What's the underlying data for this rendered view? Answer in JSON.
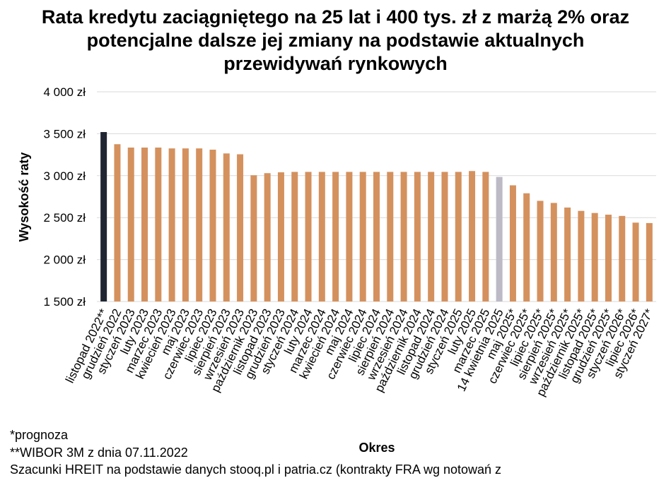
{
  "title_lines": [
    "Rata kredytu zaciągniętego na 25 lat i 400 tys. zł z marżą 2% oraz",
    "potencjalne dalsze jej zmiany na podstawie aktualnych",
    "przewidywań rynkowych"
  ],
  "footnotes": [
    "*prognoza",
    "**WIBOR 3M z dnia 07.11.2022",
    "Szacunki HREIT na podstawie danych stooq.pl i patria.cz (kontrakty FRA wg notowań z"
  ],
  "chart_data": {
    "type": "bar",
    "xlabel": "Okres",
    "ylabel": "Wysokość raty",
    "ylim": [
      1500,
      4000
    ],
    "yticks": [
      1500,
      2000,
      2500,
      3000,
      3500,
      4000
    ],
    "ytick_labels": [
      "1 500 zł",
      "2 000 zł",
      "2 500 zł",
      "3 000 zł",
      "3 500 zł",
      "4 000 zł"
    ],
    "grid": true,
    "colors": {
      "first": "#1f2533",
      "actual": "#d4915e",
      "current": "#bdbac6"
    },
    "categories": [
      "listopad 2022**",
      "grudzień 2022",
      "styczeń 2023",
      "luty 2023",
      "marzec 2023",
      "kwiecień 2023",
      "maj 2023",
      "czerwiec 2023",
      "lipiec 2023",
      "sierpień 2023",
      "wrzesień 2023",
      "październik 2023",
      "listopad 2023",
      "grudzień 2023",
      "styczeń 2024",
      "luty 2024",
      "marzec 2024",
      "kwiecień 2024",
      "maj 2024",
      "czerwiec 2024",
      "lipiec 2024",
      "sierpień 2024",
      "wrzesień 2024",
      "październik 2024",
      "listopad 2024",
      "grudzień 2024",
      "styczeń 2025",
      "luty 2025",
      "marzec 2025",
      "14 kwietnia 2025",
      "maj 2025*",
      "czerwiec 2025*",
      "lipiec 2025*",
      "sierpień 2025*",
      "wrzesień 2025*",
      "październik 2025*",
      "listopad 2025*",
      "grudzień 2025*",
      "styczeń 2026*",
      "lipiec 2026*",
      "styczeń 2027*"
    ],
    "values": [
      3520,
      3375,
      3335,
      3335,
      3335,
      3325,
      3325,
      3325,
      3310,
      3265,
      3255,
      3005,
      3030,
      3040,
      3045,
      3045,
      3045,
      3045,
      3045,
      3045,
      3045,
      3045,
      3045,
      3045,
      3045,
      3045,
      3045,
      3055,
      3045,
      2985,
      2885,
      2790,
      2700,
      2675,
      2620,
      2580,
      2555,
      2535,
      2520,
      2440,
      2435
    ]
  }
}
